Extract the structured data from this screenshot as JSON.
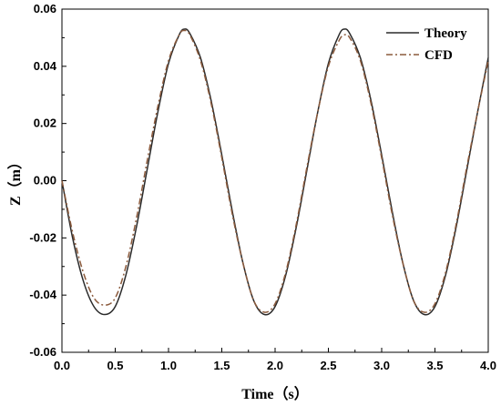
{
  "chart_data": {
    "type": "line",
    "title": "",
    "xlabel": "Time（s）",
    "ylabel": "Z（m）",
    "xlim": [
      0,
      4.0
    ],
    "ylim": [
      -0.06,
      0.06
    ],
    "x_ticks": [
      0.0,
      0.5,
      1.0,
      1.5,
      2.0,
      2.5,
      3.0,
      3.5,
      4.0
    ],
    "x_tick_labels": [
      "0.0",
      "0.5",
      "1.0",
      "1.5",
      "2.0",
      "2.5",
      "3.0",
      "3.5",
      "4.0"
    ],
    "y_ticks": [
      -0.06,
      -0.04,
      -0.02,
      0.0,
      0.02,
      0.04,
      0.06
    ],
    "y_tick_labels": [
      "-0.06",
      "-0.04",
      "-0.02",
      "0.00",
      "0.02",
      "0.04",
      "0.06"
    ],
    "grid": false,
    "legend_position": "top-right",
    "series": [
      {
        "name": "Theory",
        "color": "#2b2b2b",
        "dash": "solid",
        "x": [
          0.0,
          0.1,
          0.2,
          0.3,
          0.4,
          0.5,
          0.6,
          0.7,
          0.8,
          0.9,
          1.0,
          1.1,
          1.15,
          1.2,
          1.3,
          1.4,
          1.5,
          1.6,
          1.7,
          1.8,
          1.9,
          2.0,
          2.1,
          2.2,
          2.3,
          2.4,
          2.5,
          2.6,
          2.65,
          2.7,
          2.8,
          2.9,
          3.0,
          3.1,
          3.2,
          3.3,
          3.4,
          3.5,
          3.6,
          3.7,
          3.8,
          3.9,
          4.0
        ],
        "values": [
          0.0,
          -0.02,
          -0.035,
          -0.044,
          -0.0468,
          -0.044,
          -0.033,
          -0.016,
          0.004,
          0.024,
          0.041,
          0.051,
          0.053,
          0.0515,
          0.043,
          0.028,
          0.009,
          -0.011,
          -0.029,
          -0.042,
          -0.0468,
          -0.044,
          -0.033,
          -0.016,
          0.004,
          0.024,
          0.041,
          0.051,
          0.053,
          0.0515,
          0.043,
          0.028,
          0.009,
          -0.011,
          -0.029,
          -0.042,
          -0.0468,
          -0.044,
          -0.033,
          -0.016,
          0.004,
          0.024,
          0.043
        ]
      },
      {
        "name": "CFD",
        "color": "#8b5a3c",
        "dash": "dashdot",
        "x": [
          0.0,
          0.1,
          0.2,
          0.3,
          0.4,
          0.5,
          0.6,
          0.7,
          0.8,
          0.9,
          1.0,
          1.1,
          1.15,
          1.2,
          1.3,
          1.4,
          1.5,
          1.6,
          1.7,
          1.8,
          1.9,
          2.0,
          2.1,
          2.2,
          2.3,
          2.4,
          2.5,
          2.6,
          2.65,
          2.7,
          2.8,
          2.9,
          3.0,
          3.1,
          3.2,
          3.3,
          3.4,
          3.5,
          3.6,
          3.7,
          3.8,
          3.9,
          4.0
        ],
        "values": [
          0.0,
          -0.018,
          -0.032,
          -0.041,
          -0.0435,
          -0.041,
          -0.03,
          -0.013,
          0.007,
          0.026,
          0.042,
          0.051,
          0.0525,
          0.051,
          0.042,
          0.027,
          0.008,
          -0.012,
          -0.029,
          -0.042,
          -0.046,
          -0.043,
          -0.032,
          -0.015,
          0.005,
          0.024,
          0.04,
          0.049,
          0.051,
          0.05,
          0.042,
          0.027,
          0.008,
          -0.012,
          -0.029,
          -0.042,
          -0.046,
          -0.043,
          -0.032,
          -0.015,
          0.005,
          0.024,
          0.042
        ]
      }
    ]
  }
}
